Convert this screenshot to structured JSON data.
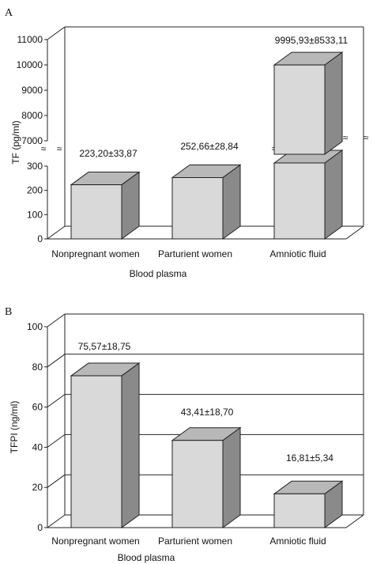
{
  "chart_data": [
    {
      "panel": "A",
      "type": "bar",
      "style": "3d",
      "ylabel": "TF (pg/ml)",
      "xlabel": "Blood plasma",
      "categories": [
        "Nonpregnant women",
        "Parturient women",
        "Amniotic fluid"
      ],
      "values": [
        223.2,
        252.66,
        9995.93
      ],
      "value_labels": [
        "223,20±33,87",
        "252,66±28,84",
        "9995,93±8533,11"
      ],
      "axis_break": true,
      "ylim_lower": [
        0,
        300
      ],
      "ylim_upper": [
        7000,
        11000
      ],
      "yticks_lower": [
        "0",
        "100",
        "200",
        "300"
      ],
      "yticks_upper": [
        "7000",
        "8000",
        "9000",
        "10000",
        "11000"
      ],
      "break_mark": "≈",
      "grid": false,
      "colors": {
        "bar_front": "#d9d9d9",
        "bar_top": "#b8b8b8",
        "bar_side": "#8a8a8a"
      }
    },
    {
      "panel": "B",
      "type": "bar",
      "style": "3d",
      "ylabel": "TFPI (ng/ml)",
      "xlabel": "Blood plasma",
      "categories": [
        "Nonpregnant women",
        "Parturient women",
        "Amniotic fluid"
      ],
      "values": [
        75.57,
        43.41,
        16.81
      ],
      "value_labels": [
        "75,57±18,75",
        "43,41±18,70",
        "16,81±5,34"
      ],
      "ylim": [
        0,
        100
      ],
      "yticks": [
        "0",
        "20",
        "40",
        "60",
        "80",
        "100"
      ],
      "grid": true,
      "colors": {
        "bar_front": "#d9d9d9",
        "bar_top": "#b8b8b8",
        "bar_side": "#8a8a8a"
      }
    }
  ]
}
